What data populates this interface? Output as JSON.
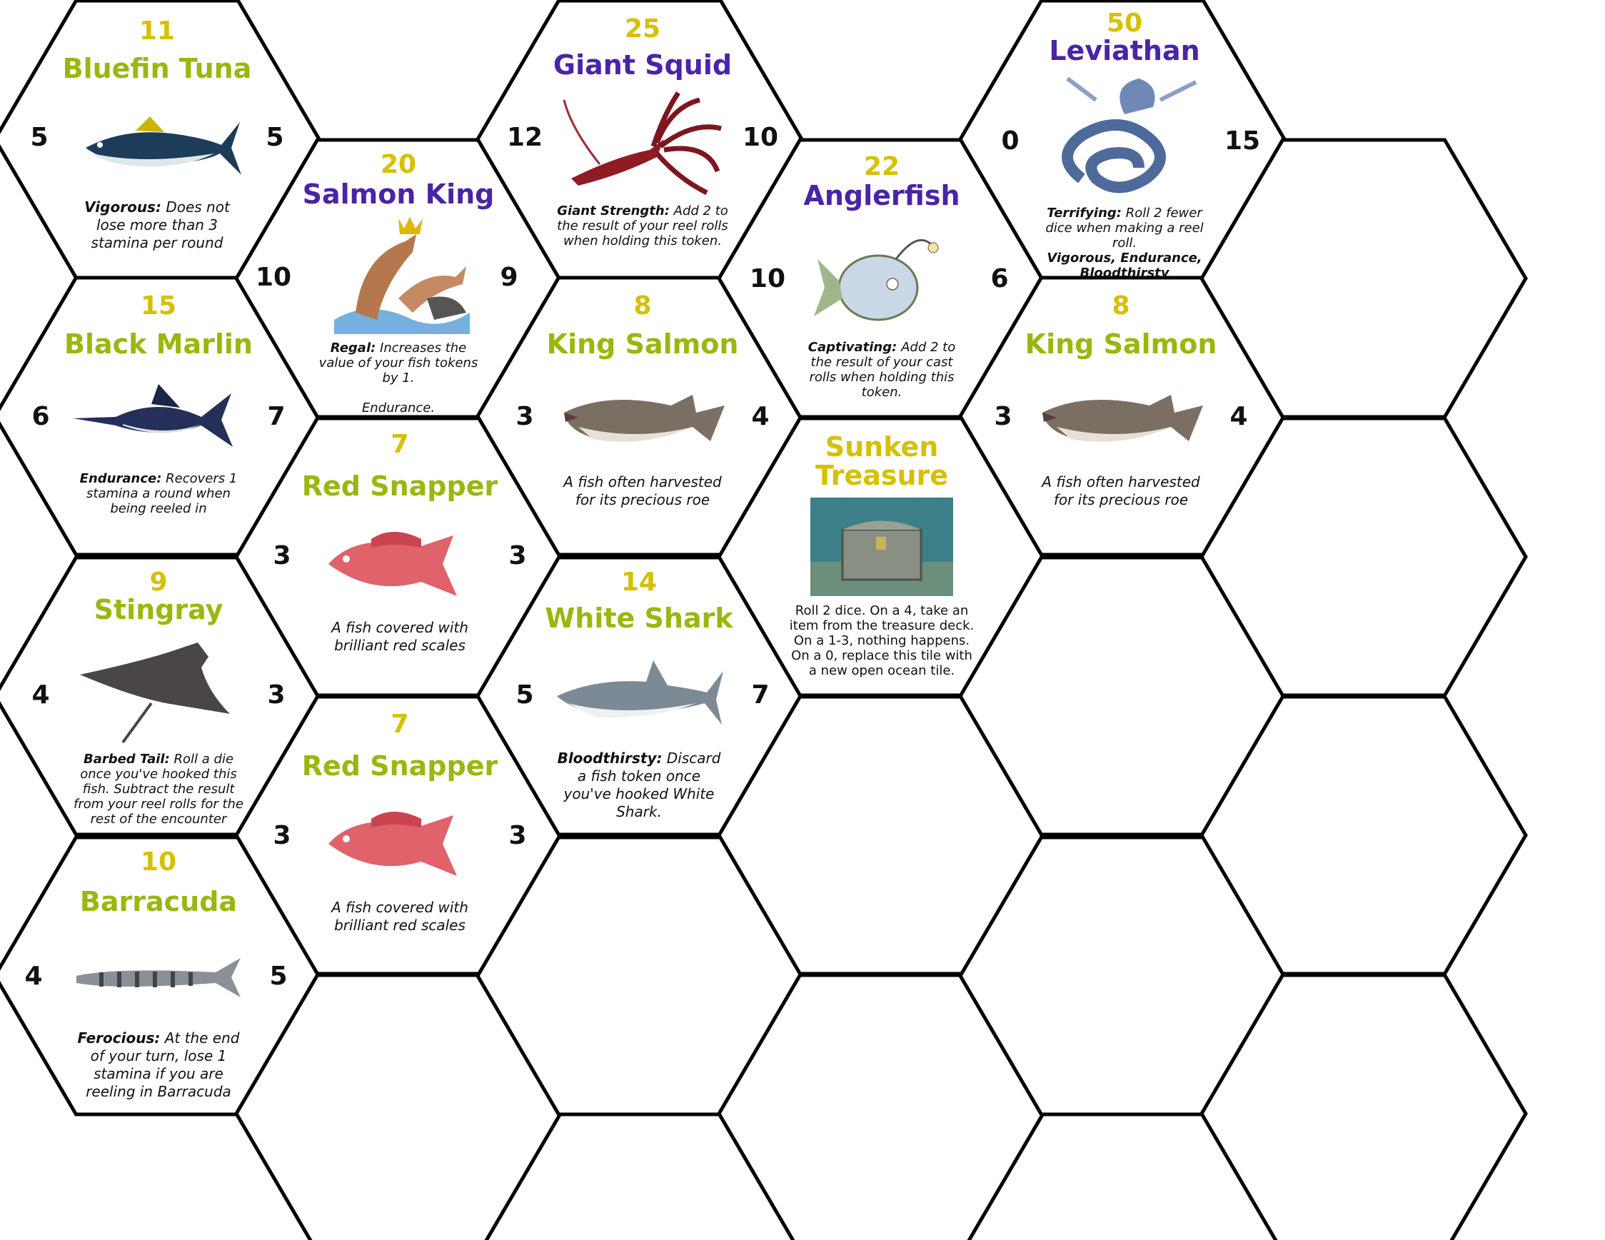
{
  "tiles": {
    "bluefin": {
      "value": "11",
      "name": "Bluefin Tuna",
      "left": "5",
      "right": "5",
      "ability": "Vigorous:",
      "text": "Does not lose more than 3 stamina per round",
      "icon": "tuna-icon"
    },
    "salmonking": {
      "value": "20",
      "name": "Salmon King",
      "left": "10",
      "right": "9",
      "ability": "Regal:",
      "text": "Increases the value of your fish tokens by 1.",
      "extra": "Endurance.",
      "icon": "crowned-salmon-icon"
    },
    "squid": {
      "value": "25",
      "name": "Giant Squid",
      "left": "12",
      "right": "10",
      "ability": "Giant Strength:",
      "text": "Add 2 to the result of your reel rolls when holding this token.",
      "icon": "squid-icon"
    },
    "angler": {
      "value": "22",
      "name": "Anglerfish",
      "left": "10",
      "right": "6",
      "ability": "Captivating:",
      "text": "Add 2 to the result of your cast rolls when holding this token.",
      "icon": "anglerfish-icon"
    },
    "leviathan": {
      "value": "50",
      "name": "Leviathan",
      "left": "0",
      "right": "15",
      "ability": "Terrifying:",
      "text": "Roll 2 fewer dice when making a reel roll.",
      "extra": "Vigorous, Endurance, Bloodthirsty",
      "icon": "sea-serpent-icon"
    },
    "marlin": {
      "value": "15",
      "name": "Black Marlin",
      "left": "6",
      "right": "7",
      "ability": "Endurance:",
      "text": "Recovers 1 stamina a round when being reeled in",
      "icon": "marlin-icon"
    },
    "kingsalmon1": {
      "value": "8",
      "name": "King Salmon",
      "left": "3",
      "right": "4",
      "text": "A fish often harvested for its precious roe",
      "icon": "salmon-icon"
    },
    "kingsalmon2": {
      "value": "8",
      "name": "King Salmon",
      "left": "3",
      "right": "4",
      "text": "A fish often harvested for its precious roe",
      "icon": "salmon-icon"
    },
    "snapper1": {
      "value": "7",
      "name": "Red Snapper",
      "left": "3",
      "right": "3",
      "text": "A fish covered with brilliant red scales",
      "icon": "snapper-icon"
    },
    "treasure": {
      "name1": "Sunken",
      "name2": "Treasure",
      "text": "Roll 2 dice. On a 4, take an item from the treasure deck. On a 1-3, nothing happens. On a 0, replace this tile with a new open ocean tile.",
      "icon": "treasure-chest-icon"
    },
    "stingray": {
      "value": "9",
      "name": "Stingray",
      "left": "4",
      "right": "3",
      "ability": "Barbed Tail:",
      "text": "Roll a die once you've hooked this fish. Subtract the result from your reel rolls for the rest of the encounter",
      "icon": "stingray-icon"
    },
    "shark": {
      "value": "14",
      "name": "White Shark",
      "left": "5",
      "right": "7",
      "ability": "Bloodthirsty:",
      "text": "Discard a fish token once you've hooked White Shark.",
      "icon": "shark-icon"
    },
    "snapper2": {
      "value": "7",
      "name": "Red Snapper",
      "left": "3",
      "right": "3",
      "text": "A fish covered with brilliant red scales",
      "icon": "snapper-icon"
    },
    "barracuda": {
      "value": "10",
      "name": "Barracuda",
      "left": "4",
      "right": "5",
      "ability": "Ferocious:",
      "text": "At the end of your turn, lose 1 stamina if you are reeling in Barracuda",
      "icon": "barracuda-icon"
    }
  },
  "colors": {
    "value": "#d6c000",
    "name_green": "#98b80e",
    "name_purple": "#4a24a6",
    "outline": "#000000"
  }
}
